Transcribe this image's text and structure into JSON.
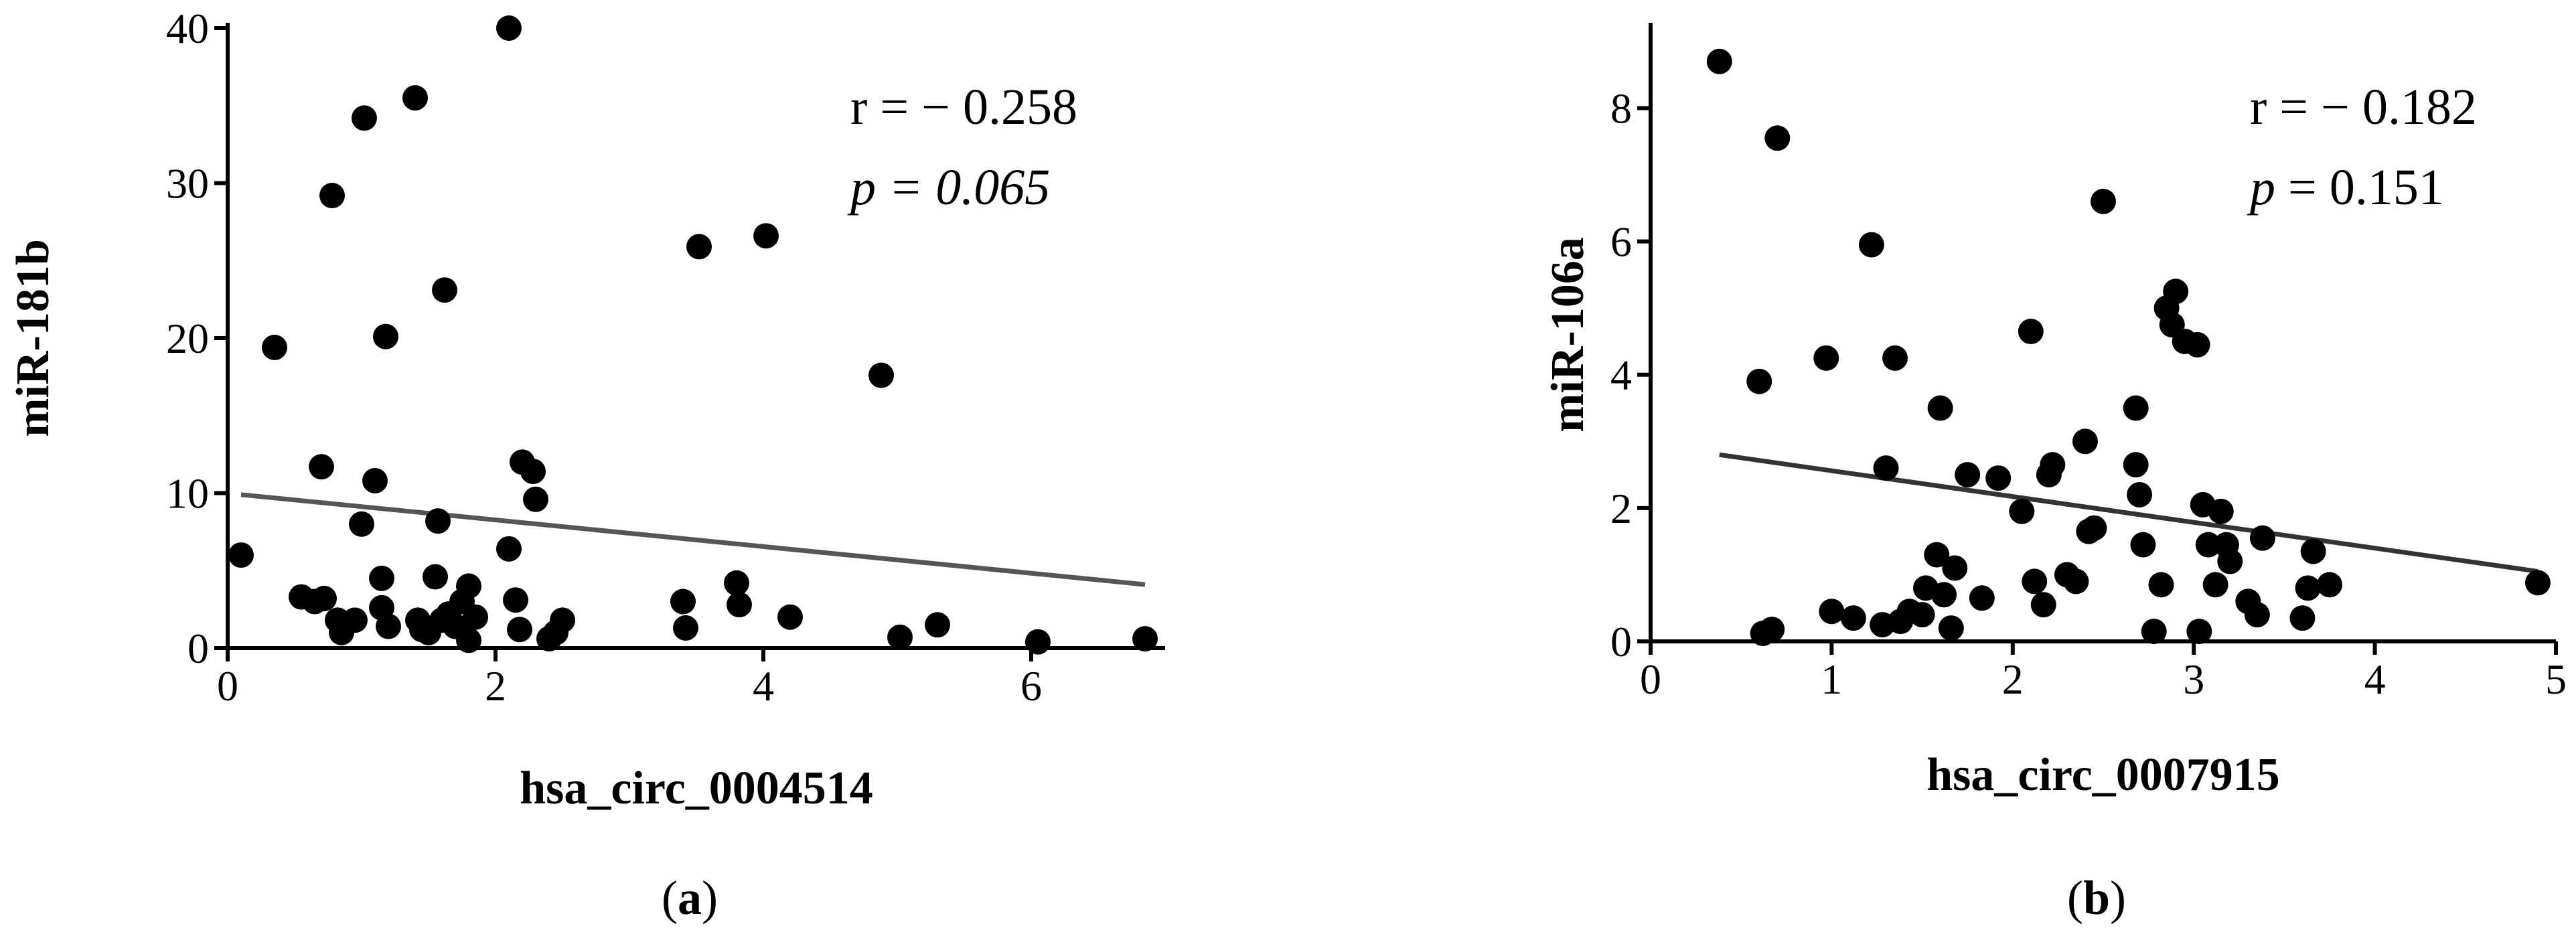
{
  "chart_data": [
    {
      "type": "scatter",
      "panel_label": "(a)",
      "xlabel": "hsa_circ_0004514",
      "ylabel": "miR-181b",
      "xlim": [
        0,
        7
      ],
      "ylim": [
        0,
        40
      ],
      "xticks": [
        0,
        2,
        4,
        6
      ],
      "yticks": [
        0,
        10,
        20,
        30,
        40
      ],
      "grid": false,
      "r_text": "r = − 0.258",
      "p_text": "p = 0.065",
      "trendline": {
        "x": [
          0.1,
          6.85
        ],
        "y": [
          9.9,
          4.1
        ],
        "color": "#555555"
      },
      "marker_color": "#000000",
      "points": [
        [
          0.1,
          6.0
        ],
        [
          0.35,
          19.4
        ],
        [
          0.55,
          3.3
        ],
        [
          0.65,
          3.0
        ],
        [
          0.7,
          11.7
        ],
        [
          0.72,
          3.2
        ],
        [
          0.78,
          29.2
        ],
        [
          0.82,
          1.8
        ],
        [
          0.85,
          1.0
        ],
        [
          0.95,
          1.8
        ],
        [
          1.0,
          8.0
        ],
        [
          1.02,
          34.2
        ],
        [
          1.1,
          10.8
        ],
        [
          1.15,
          4.5
        ],
        [
          1.15,
          2.6
        ],
        [
          1.18,
          20.1
        ],
        [
          1.2,
          1.4
        ],
        [
          1.4,
          35.5
        ],
        [
          1.42,
          1.8
        ],
        [
          1.45,
          1.2
        ],
        [
          1.5,
          1.0
        ],
        [
          1.55,
          4.6
        ],
        [
          1.57,
          8.2
        ],
        [
          1.6,
          1.8
        ],
        [
          1.62,
          23.1
        ],
        [
          1.65,
          2.2
        ],
        [
          1.7,
          1.4
        ],
        [
          1.75,
          3.0
        ],
        [
          1.8,
          4.0
        ],
        [
          1.8,
          0.5
        ],
        [
          1.85,
          2.0
        ],
        [
          2.1,
          40.0
        ],
        [
          2.1,
          6.4
        ],
        [
          2.15,
          3.1
        ],
        [
          2.18,
          1.2
        ],
        [
          2.2,
          12.0
        ],
        [
          2.28,
          11.4
        ],
        [
          2.3,
          9.6
        ],
        [
          2.4,
          0.6
        ],
        [
          2.45,
          1.0
        ],
        [
          2.5,
          1.8
        ],
        [
          3.4,
          3.0
        ],
        [
          3.42,
          1.3
        ],
        [
          3.52,
          25.9
        ],
        [
          3.8,
          4.2
        ],
        [
          3.82,
          2.8
        ],
        [
          4.02,
          26.6
        ],
        [
          4.2,
          2.0
        ],
        [
          4.88,
          17.6
        ],
        [
          5.02,
          0.7
        ],
        [
          5.3,
          1.5
        ],
        [
          6.05,
          0.4
        ],
        [
          6.85,
          0.6
        ]
      ]
    },
    {
      "type": "scatter",
      "panel_label": "(b)",
      "xlabel": "hsa_circ_0007915",
      "ylabel": "miR-106a",
      "xlim": [
        0,
        5
      ],
      "ylim": [
        0,
        9.2
      ],
      "xticks": [
        0,
        1,
        2,
        3,
        4,
        5
      ],
      "yticks": [
        0,
        2,
        4,
        6,
        8
      ],
      "grid": false,
      "r_text": "r = − 0.182",
      "p_text": "p = 0.151",
      "trendline": {
        "x": [
          0.38,
          4.9
        ],
        "y": [
          2.8,
          1.05
        ],
        "color": "#333333"
      },
      "marker_color": "#000000",
      "points": [
        [
          0.38,
          8.7
        ],
        [
          0.6,
          3.9
        ],
        [
          0.62,
          0.12
        ],
        [
          0.67,
          0.18
        ],
        [
          0.7,
          7.55
        ],
        [
          0.97,
          4.25
        ],
        [
          1.0,
          0.45
        ],
        [
          1.12,
          0.35
        ],
        [
          1.22,
          5.95
        ],
        [
          1.28,
          0.25
        ],
        [
          1.3,
          2.6
        ],
        [
          1.35,
          4.25
        ],
        [
          1.38,
          0.3
        ],
        [
          1.43,
          0.45
        ],
        [
          1.5,
          0.4
        ],
        [
          1.52,
          0.8
        ],
        [
          1.58,
          1.3
        ],
        [
          1.6,
          3.5
        ],
        [
          1.62,
          0.7
        ],
        [
          1.66,
          0.2
        ],
        [
          1.68,
          1.1
        ],
        [
          1.75,
          2.5
        ],
        [
          1.83,
          0.65
        ],
        [
          1.92,
          2.45
        ],
        [
          2.05,
          1.95
        ],
        [
          2.1,
          4.65
        ],
        [
          2.12,
          0.9
        ],
        [
          2.17,
          0.55
        ],
        [
          2.2,
          2.5
        ],
        [
          2.22,
          2.65
        ],
        [
          2.3,
          1.0
        ],
        [
          2.35,
          0.9
        ],
        [
          2.4,
          3.0
        ],
        [
          2.42,
          1.65
        ],
        [
          2.45,
          1.7
        ],
        [
          2.5,
          6.6
        ],
        [
          2.68,
          3.5
        ],
        [
          2.68,
          2.65
        ],
        [
          2.7,
          2.2
        ],
        [
          2.72,
          1.45
        ],
        [
          2.78,
          0.15
        ],
        [
          2.82,
          0.85
        ],
        [
          2.85,
          5.0
        ],
        [
          2.88,
          4.75
        ],
        [
          2.9,
          5.25
        ],
        [
          2.95,
          4.5
        ],
        [
          3.02,
          4.45
        ],
        [
          3.03,
          0.15
        ],
        [
          3.05,
          2.05
        ],
        [
          3.08,
          1.45
        ],
        [
          3.12,
          0.85
        ],
        [
          3.15,
          1.95
        ],
        [
          3.18,
          1.45
        ],
        [
          3.2,
          1.2
        ],
        [
          3.3,
          0.6
        ],
        [
          3.35,
          0.4
        ],
        [
          3.38,
          1.55
        ],
        [
          3.6,
          0.35
        ],
        [
          3.63,
          0.8
        ],
        [
          3.66,
          1.35
        ],
        [
          3.75,
          0.85
        ],
        [
          4.9,
          0.88
        ]
      ]
    }
  ]
}
